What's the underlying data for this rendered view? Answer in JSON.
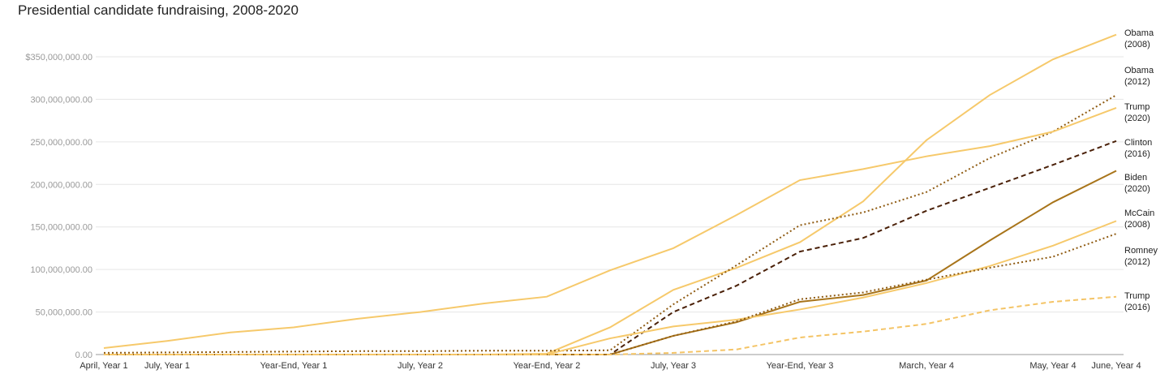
{
  "chart_data": {
    "type": "line",
    "title": "Presidential candidate fundraising, 2008-2020",
    "categories": [
      "April, Year 1",
      "July, Year 1",
      null,
      "Year-End, Year 1",
      null,
      "July, Year 2",
      null,
      "Year-End, Year 2",
      null,
      "July, Year 3",
      null,
      "Year-End, Year 3",
      null,
      "March, Year 4",
      null,
      "May, Year 4",
      "June, Year 4"
    ],
    "ylim": [
      0,
      375000000
    ],
    "yticks": [
      {
        "value": 0,
        "label": "0.00"
      },
      {
        "value": 50000000,
        "label": "50,000,000.00"
      },
      {
        "value": 100000000,
        "label": "100,000,000.00"
      },
      {
        "value": 150000000,
        "label": "150,000,000.00"
      },
      {
        "value": 200000000,
        "label": "200,000,000.00"
      },
      {
        "value": 250000000,
        "label": "250,000,000.00"
      },
      {
        "value": 300000000,
        "label": "300,000,000.00"
      },
      {
        "value": 350000000,
        "label": "$350,000,000.00"
      }
    ],
    "grid": true,
    "series": [
      {
        "name": "Obama (2008)",
        "color": "#f6c96b",
        "dash": "solid",
        "values": [
          0,
          0,
          0,
          0,
          0,
          0,
          0,
          1000000,
          32000000,
          76000000,
          102000000,
          132000000,
          180000000,
          252000000,
          305000000,
          347000000,
          376000000
        ]
      },
      {
        "name": "Obama (2012)",
        "color": "#8f5b12",
        "dash": "dotted",
        "values": [
          2000000,
          2500000,
          3000000,
          3500000,
          4000000,
          4000000,
          4500000,
          4500000,
          5000000,
          59000000,
          105000000,
          152000000,
          167000000,
          191000000,
          231000000,
          262000000,
          305000000
        ]
      },
      {
        "name": "Trump (2020)",
        "color": "#f6c96b",
        "dash": "solid",
        "values": [
          7600000,
          16000000,
          26000000,
          32000000,
          42000000,
          50000000,
          60000000,
          68000000,
          99000000,
          125000000,
          164000000,
          205000000,
          218000000,
          233000000,
          245000000,
          262000000,
          290000000
        ]
      },
      {
        "name": "Clinton (2016)",
        "color": "#4a2008",
        "dash": "dashed",
        "values": [
          0,
          0,
          0,
          0,
          0,
          0,
          0,
          0,
          0,
          50000000,
          81000000,
          121000000,
          137000000,
          169000000,
          196000000,
          223000000,
          251000000
        ]
      },
      {
        "name": "Biden (2020)",
        "color": "#a8741a",
        "dash": "solid",
        "values": [
          0,
          0,
          0,
          0,
          0,
          0,
          0,
          0,
          0,
          22000000,
          38000000,
          62000000,
          70000000,
          87000000,
          134000000,
          179000000,
          216000000
        ]
      },
      {
        "name": "McCain (2008)",
        "color": "#f6c96b",
        "dash": "solid",
        "values": [
          0,
          0,
          0,
          0,
          0,
          0,
          0,
          0,
          19000000,
          33000000,
          41000000,
          53000000,
          67000000,
          84000000,
          104000000,
          128000000,
          157000000
        ]
      },
      {
        "name": "Romney (2012)",
        "color": "#8f5b12",
        "dash": "dotted",
        "values": [
          0,
          0,
          0,
          0,
          0,
          0,
          0,
          0,
          0,
          22000000,
          39000000,
          65000000,
          73000000,
          88000000,
          102000000,
          115000000,
          142000000
        ]
      },
      {
        "name": "Trump (2016)",
        "color": "#f4c466",
        "dash": "dashed",
        "values": [
          0,
          0,
          0,
          0,
          0,
          0,
          0,
          0,
          0,
          2000000,
          6000000,
          20000000,
          27000000,
          36000000,
          52000000,
          62000000,
          68000000
        ]
      }
    ]
  }
}
